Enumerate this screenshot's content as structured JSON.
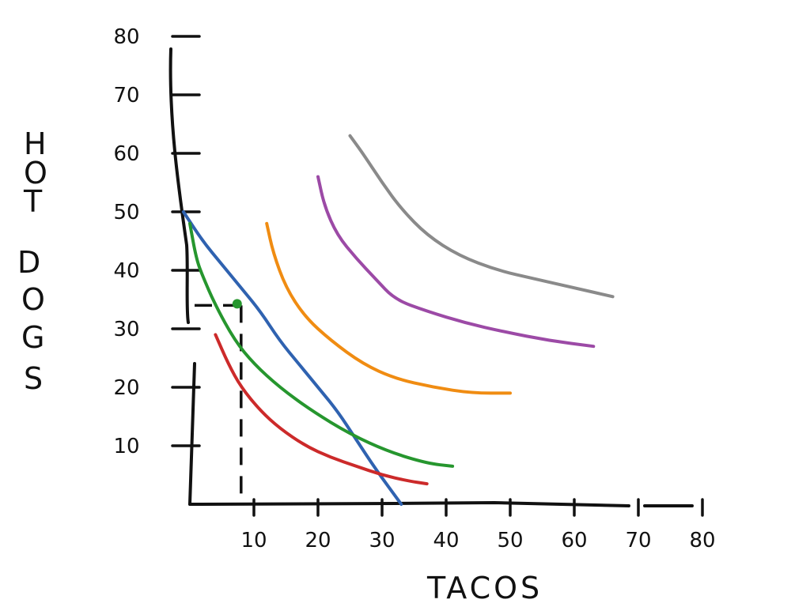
{
  "chart_data": {
    "type": "line",
    "xlabel": "TACOS",
    "ylabel": "HOT DOGS",
    "xlim": [
      0,
      80
    ],
    "ylim": [
      0,
      80
    ],
    "x_ticks": [
      10,
      20,
      30,
      40,
      50,
      60,
      70,
      80
    ],
    "y_ticks": [
      10,
      20,
      30,
      40,
      50,
      60,
      70,
      80
    ],
    "x_tick_labels": [
      "10",
      "20",
      "30",
      "40",
      "50",
      "60",
      "70",
      "80"
    ],
    "y_tick_labels": [
      "10",
      "20",
      "30",
      "40",
      "50",
      "60",
      "70",
      "80"
    ],
    "grid": false,
    "legend": "none",
    "series": [
      {
        "color": "#2f62b0",
        "style": "budget-line",
        "points": [
          [
            -1,
            50
          ],
          [
            2,
            45
          ],
          [
            5,
            41
          ],
          [
            8,
            37
          ],
          [
            11,
            33
          ],
          [
            14,
            28
          ],
          [
            17,
            24
          ],
          [
            20,
            20
          ],
          [
            23,
            16
          ],
          [
            26,
            11
          ],
          [
            29,
            6
          ],
          [
            33,
            0
          ]
        ]
      },
      {
        "color": "#cc2a2a",
        "points": [
          [
            4,
            29
          ],
          [
            6,
            24
          ],
          [
            8,
            20
          ],
          [
            11,
            16
          ],
          [
            14,
            13
          ],
          [
            18,
            10
          ],
          [
            22,
            8
          ],
          [
            26,
            6.5
          ],
          [
            30,
            5
          ],
          [
            34,
            4
          ],
          [
            37,
            3.5
          ]
        ]
      },
      {
        "color": "#26962e",
        "points": [
          [
            0,
            48
          ],
          [
            1,
            42
          ],
          [
            2,
            39
          ],
          [
            4,
            34
          ],
          [
            7,
            28
          ],
          [
            10,
            24
          ],
          [
            14,
            20
          ],
          [
            19,
            16
          ],
          [
            25,
            12
          ],
          [
            31,
            9
          ],
          [
            37,
            7
          ],
          [
            41,
            6.5
          ]
        ]
      },
      {
        "color": "#f08c12",
        "points": [
          [
            12,
            48
          ],
          [
            13,
            43
          ],
          [
            15,
            37
          ],
          [
            18,
            32
          ],
          [
            22,
            28
          ],
          [
            27,
            24
          ],
          [
            32,
            21.5
          ],
          [
            38,
            20
          ],
          [
            44,
            19
          ],
          [
            50,
            19
          ]
        ]
      },
      {
        "color": "#9c4aa6",
        "points": [
          [
            20,
            56
          ],
          [
            21,
            51
          ],
          [
            23,
            46
          ],
          [
            26,
            42
          ],
          [
            29,
            38.5
          ],
          [
            32,
            35
          ],
          [
            37,
            33
          ],
          [
            43,
            31
          ],
          [
            49,
            29.5
          ],
          [
            56,
            28
          ],
          [
            63,
            27
          ]
        ]
      },
      {
        "color": "#8a8a8a",
        "points": [
          [
            25,
            63
          ],
          [
            27,
            60
          ],
          [
            30,
            55
          ],
          [
            33,
            50.5
          ],
          [
            37,
            46
          ],
          [
            42,
            42.5
          ],
          [
            48,
            40
          ],
          [
            54,
            38.5
          ],
          [
            60,
            37
          ],
          [
            66,
            35.5
          ]
        ]
      }
    ],
    "guide_point": {
      "x": 8,
      "y": 34
    }
  }
}
